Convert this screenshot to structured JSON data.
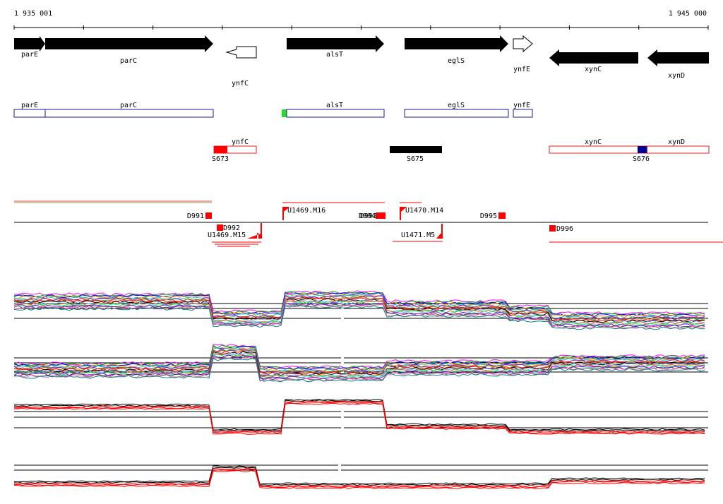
{
  "coords": {
    "start": "1 935 001",
    "end": "1 945 000"
  },
  "genes": [
    {
      "id": "parE",
      "label": "parE",
      "strand": "+",
      "filled": true
    },
    {
      "id": "parC",
      "label": "parC",
      "strand": "+",
      "filled": true
    },
    {
      "id": "ynfC",
      "label": "ynfC",
      "strand": "-",
      "filled": false
    },
    {
      "id": "alsT",
      "label": "alsT",
      "strand": "+",
      "filled": true
    },
    {
      "id": "eglS",
      "label": "eglS",
      "strand": "+",
      "filled": true
    },
    {
      "id": "ynfE",
      "label": "ynfE",
      "strand": "+",
      "filled": false
    },
    {
      "id": "xynC",
      "label": "xynC",
      "strand": "-",
      "filled": true
    },
    {
      "id": "xynD",
      "label": "xynD",
      "strand": "-",
      "filled": true
    }
  ],
  "operons_plus": [
    "parE",
    "parC",
    "alsT",
    "eglS",
    "ynfE"
  ],
  "operons_minus": [
    "ynfC",
    "xynC",
    "xynD"
  ],
  "segments": [
    {
      "id": "S673",
      "label": "S673"
    },
    {
      "id": "S675",
      "label": "S675"
    },
    {
      "id": "S676",
      "label": "S676"
    }
  ],
  "features": {
    "D991": "D991",
    "D992": "D992",
    "overlap_minus": "U1469.M15",
    "U1469_M16": "U1469.M16",
    "D994": "D994",
    "D993": "D993",
    "U1470_M14": "U1470.M14",
    "D995": "D995",
    "D996": "D996",
    "U1471_M5": "U1471.M5"
  },
  "colors": {
    "gene_fill": "#000000",
    "operon_outline": "#1a1aa0",
    "segment_red": "#ff0000",
    "segment_blue": "#000099",
    "feature_red": "#ff0000",
    "promoter_green": "#22dd22"
  }
}
